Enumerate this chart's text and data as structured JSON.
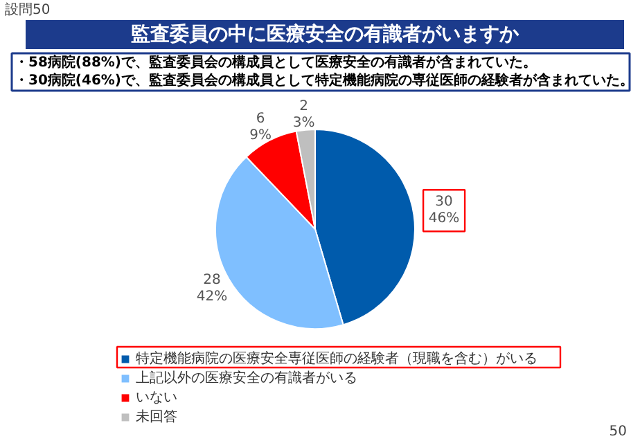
{
  "chart_data": {
    "type": "pie",
    "title": "監査委員の中に医療安全の有識者がいますか",
    "categories": [
      "特定機能病院の医療安全専従医師の経験者（現職を含む）がいる",
      "上記以外の医療安全の有識者がいる",
      "いない",
      "未回答"
    ],
    "values": [
      30,
      28,
      6,
      2
    ],
    "colors": [
      "#005bac",
      "#7fbfff",
      "#ff0000",
      "#bfbfbf"
    ],
    "value_labels": [
      "30\n46%",
      "28\n42%",
      "6\n9%",
      "2\n3%"
    ],
    "legend": "bottom",
    "annotations": [
      "設問50",
      "・58病院(88%)で、監査委員会の構成員として医療安全の有識者が含まれていた。",
      "・30病院(46%)で、監査委員会の構成員として特定機能病院の専従医師の経験者が含まれていた。",
      "50"
    ]
  }
}
